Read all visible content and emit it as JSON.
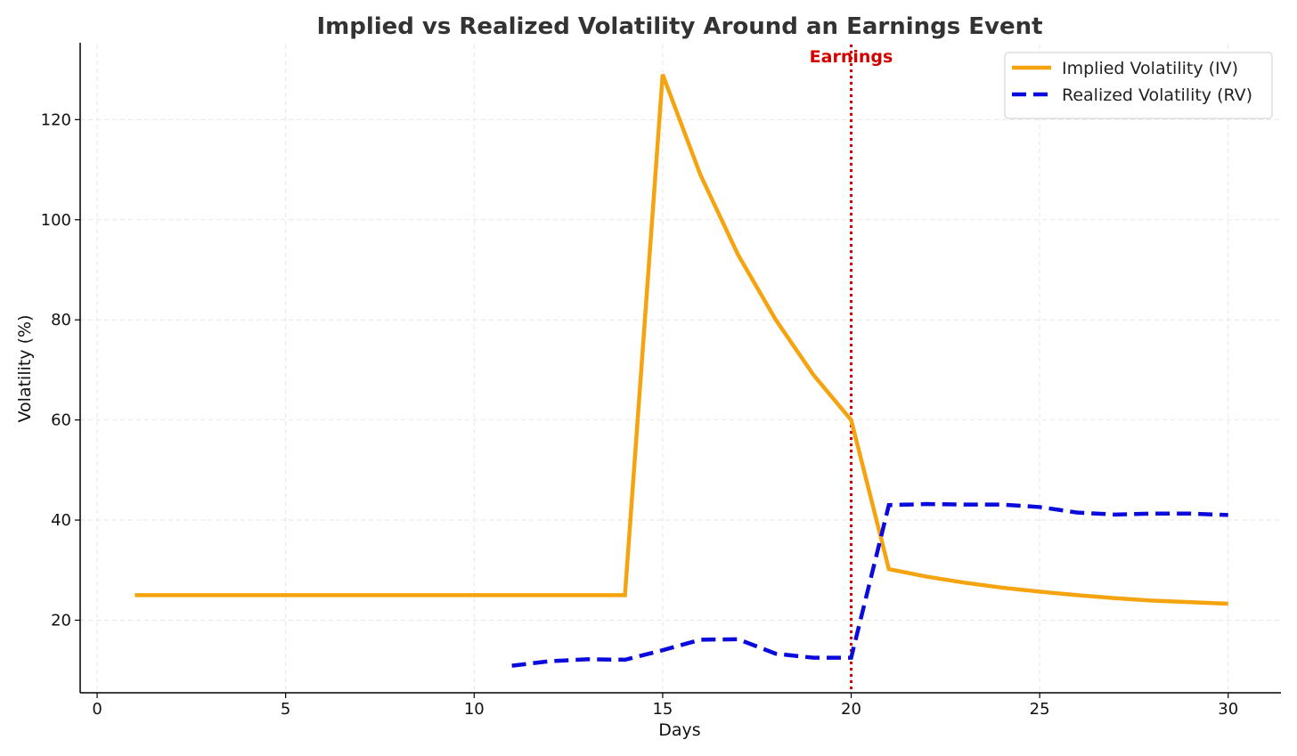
{
  "chart_data": {
    "type": "line",
    "title": "Implied vs Realized Volatility Around an Earnings Event",
    "xlabel": "Days",
    "ylabel": "Volatility (%)",
    "xlim": [
      -0.45,
      31.4
    ],
    "ylim": [
      5.5,
      135
    ],
    "xticks": [
      0,
      5,
      10,
      15,
      20,
      25,
      30
    ],
    "yticks": [
      20,
      40,
      60,
      80,
      100,
      120
    ],
    "grid": true,
    "legend_position": "top-right",
    "series": [
      {
        "name": "Implied Volatility (IV)",
        "color": "#F5A30F",
        "style": "solid",
        "x": [
          1,
          2,
          3,
          4,
          5,
          6,
          7,
          8,
          9,
          10,
          11,
          12,
          13,
          14,
          15,
          16,
          17,
          18,
          19,
          20,
          21,
          22,
          23,
          24,
          25,
          26,
          27,
          28,
          29,
          30
        ],
        "y": [
          25,
          25,
          25,
          25,
          25,
          25,
          25,
          25,
          25,
          25,
          25,
          25,
          25,
          25,
          129,
          109,
          93,
          80,
          69,
          60,
          30.2,
          28.7,
          27.5,
          26.5,
          25.7,
          25,
          24.4,
          23.9,
          23.6,
          23.3
        ]
      },
      {
        "name": "Realized Volatility (RV)",
        "color": "#0A0ADC",
        "style": "dashed",
        "x": [
          11,
          12,
          13,
          14,
          15,
          16,
          17,
          18,
          19,
          20,
          21,
          22,
          23,
          24,
          25,
          26,
          27,
          28,
          29,
          30
        ],
        "y": [
          10.9,
          11.8,
          12.2,
          12.1,
          14.0,
          16.1,
          16.2,
          13.3,
          12.5,
          12.5,
          43.0,
          43.2,
          43.1,
          43.1,
          42.6,
          41.5,
          41.1,
          41.3,
          41.3,
          41.0
        ]
      }
    ],
    "annotations": [
      {
        "type": "vline",
        "x": 20,
        "label": "Earnings",
        "color": "#D40000",
        "style": "dotted"
      }
    ]
  }
}
